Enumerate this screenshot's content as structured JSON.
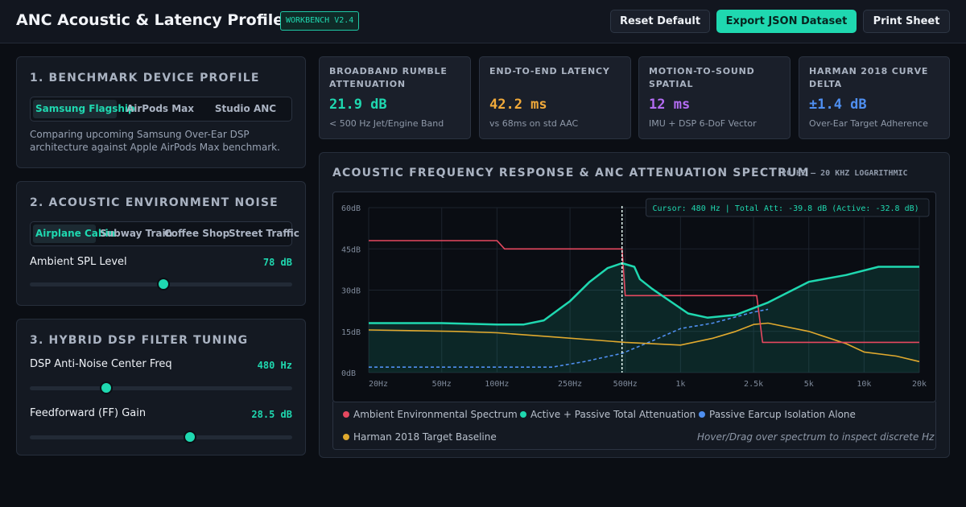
{
  "header": {
    "title": "ANC Acoustic & Latency Profiler",
    "badge": "WORKBENCH V2.4",
    "buttons": {
      "reset": "Reset Default",
      "export": "Export JSON Dataset",
      "print": "Print Sheet"
    }
  },
  "profile": {
    "title": "1. BENCHMARK DEVICE PROFILE",
    "options": [
      "Samsung Flagship",
      "AirPods Max",
      "Studio ANC"
    ],
    "selected": "Samsung Flagship",
    "description": "Comparing upcoming Samsung Over-Ear DSP architecture against Apple AirPods Max benchmark."
  },
  "environment": {
    "title": "2. ACOUSTIC ENVIRONMENT NOISE",
    "options": [
      "Airplane Cabin",
      "Subway Train",
      "Coffee Shop",
      "Street Traffic"
    ],
    "selected": "Airplane Cabin",
    "spl_label": "Ambient SPL Level",
    "spl_value": "78 dB",
    "spl_level": 0.51
  },
  "dsp": {
    "title": "3. HYBRID DSP FILTER TUNING",
    "center_freq_label": "DSP Anti-Noise Center Freq",
    "center_freq_value": "480 Hz",
    "center_freq_level": 0.29,
    "ff_gain_label": "Feedforward (FF) Gain",
    "ff_gain_value": "28.5 dB",
    "ff_gain_level": 0.61
  },
  "kpis": [
    {
      "label": "BROADBAND RUMBLE ATTENUATION",
      "value": "21.9 dB",
      "sub": "< 500 Hz Jet/Engine Band",
      "color": "#1fd8b0"
    },
    {
      "label": "END-TO-END LATENCY",
      "value": "42.2 ms",
      "sub": "vs 68ms on std AAC",
      "color": "#f0a93a"
    },
    {
      "label": "MOTION-TO-SOUND SPATIAL",
      "value": "12 ms",
      "sub": "IMU + DSP 6-DoF Vector",
      "color": "#b36cf2"
    },
    {
      "label": "HARMAN 2018 CURVE DELTA",
      "value": "±1.4 dB",
      "sub": "Over-Ear Target Adherence",
      "color": "#4f8ff0"
    }
  ],
  "chart": {
    "title": "ACOUSTIC FREQUENCY RESPONSE & ANC ATTENUATION SPECTRUM",
    "subtitle": "20 HZ – 20 KHZ LOGARITHMIC",
    "cursor_text": "Cursor: 480 Hz | Total Att: -39.8 dB (Active: -32.8 dB)",
    "hint": "Hover/Drag over spectrum to inspect discrete Hz",
    "legend": [
      {
        "name": "Ambient Environmental Spectrum",
        "color": "#e5485f"
      },
      {
        "name": "Active + Passive Total Attenuation",
        "color": "#1fd8b0"
      },
      {
        "name": "Passive Earcup Isolation Alone",
        "color": "#4f8ff0"
      },
      {
        "name": "Harman 2018 Target Baseline",
        "color": "#e0a92e"
      }
    ]
  },
  "chart_data": {
    "type": "line",
    "xscale": "log",
    "xlim": [
      20,
      20000
    ],
    "ylim": [
      0,
      60
    ],
    "x_ticks": [
      20,
      50,
      100,
      250,
      500,
      1000,
      2500,
      5000,
      10000,
      20000
    ],
    "x_tick_labels": [
      "20Hz",
      "50Hz",
      "100Hz",
      "250Hz",
      "500Hz",
      "1k",
      "2.5k",
      "5k",
      "10k",
      "20k"
    ],
    "y_ticks": [
      0,
      15,
      30,
      45,
      60
    ],
    "y_tick_labels": [
      "0dB",
      "15dB",
      "30dB",
      "45dB",
      "60dB"
    ],
    "cursor_x": 480,
    "series": [
      {
        "name": "Ambient Environmental Spectrum",
        "color": "#e5485f",
        "x": [
          20,
          100,
          110,
          480,
          500,
          2600,
          2800,
          20000
        ],
        "y": [
          48,
          48,
          45,
          45,
          28,
          28,
          11,
          11
        ]
      },
      {
        "name": "Active + Passive Total Attenuation",
        "color": "#1fd8b0",
        "x": [
          20,
          50,
          100,
          140,
          180,
          250,
          320,
          400,
          480,
          560,
          600,
          700,
          900,
          1100,
          1400,
          2000,
          3000,
          5000,
          8000,
          12000,
          20000
        ],
        "y": [
          18,
          18,
          17.5,
          17.5,
          19,
          26,
          33,
          38,
          39.8,
          38.5,
          34,
          30.5,
          25.5,
          21.5,
          20,
          21,
          25.5,
          33,
          35.5,
          38.5,
          38.5
        ]
      },
      {
        "name": "Passive Earcup Isolation Alone",
        "color": "#4f8ff0",
        "x": [
          20,
          100,
          200,
          300,
          480,
          700,
          1000,
          1500,
          2500,
          3000
        ],
        "y": [
          2,
          2,
          2,
          4,
          7,
          11.5,
          16,
          18,
          22,
          23
        ]
      },
      {
        "name": "Harman 2018 Target Baseline",
        "color": "#e0a92e",
        "x": [
          20,
          60,
          100,
          200,
          500,
          700,
          1000,
          1500,
          2000,
          2500,
          3000,
          5000,
          8000,
          10000,
          15000,
          20000
        ],
        "y": [
          15.5,
          15,
          14.5,
          13,
          11,
          10.5,
          10,
          12.5,
          15,
          17.5,
          18,
          15,
          10.5,
          7.5,
          6,
          4
        ]
      }
    ]
  }
}
